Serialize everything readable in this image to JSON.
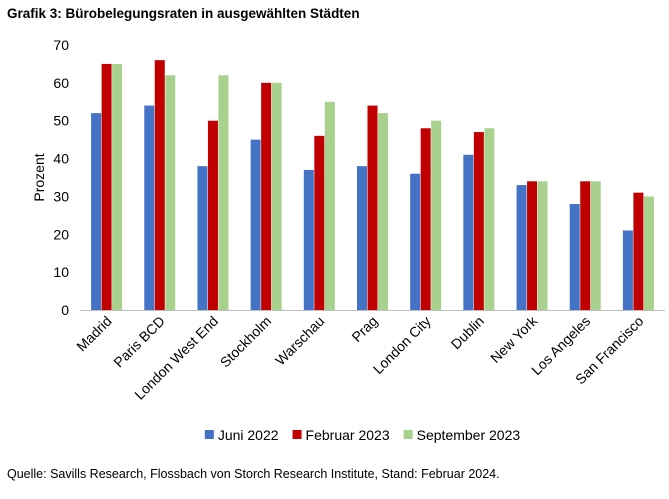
{
  "header": {
    "title": "Grafik 3:  Bürobelegungsraten in ausgewählten Städten"
  },
  "footer": {
    "source": "Quelle: Savills Research, Flossbach von Storch Research Institute, Stand: Februar 2024."
  },
  "chart_data": {
    "type": "bar",
    "title": "Grafik 3:  Bürobelegungsraten in ausgewählten Städten",
    "xlabel": "",
    "ylabel": "Prozent",
    "ylim": [
      0,
      70
    ],
    "yticks": [
      0,
      10,
      20,
      30,
      40,
      50,
      60,
      70
    ],
    "grid": false,
    "legend_position": "bottom",
    "categories": [
      "Madrid",
      "Paris BCD",
      "London West End",
      "Stockholm",
      "Warschau",
      "Prag",
      "London City",
      "Dublin",
      "New York",
      "Los Angeles",
      "San Francisco"
    ],
    "series": [
      {
        "name": "Juni 2022",
        "color": "#4472C4",
        "values": [
          52,
          54,
          38,
          45,
          37,
          38,
          36,
          41,
          33,
          28,
          21
        ]
      },
      {
        "name": "Februar 2023",
        "color": "#C00000",
        "values": [
          65,
          66,
          50,
          60,
          46,
          54,
          48,
          47,
          34,
          34,
          31
        ]
      },
      {
        "name": "September 2023",
        "color": "#A9D18E",
        "values": [
          65,
          62,
          62,
          60,
          55,
          52,
          50,
          48,
          34,
          34,
          30
        ]
      }
    ]
  }
}
